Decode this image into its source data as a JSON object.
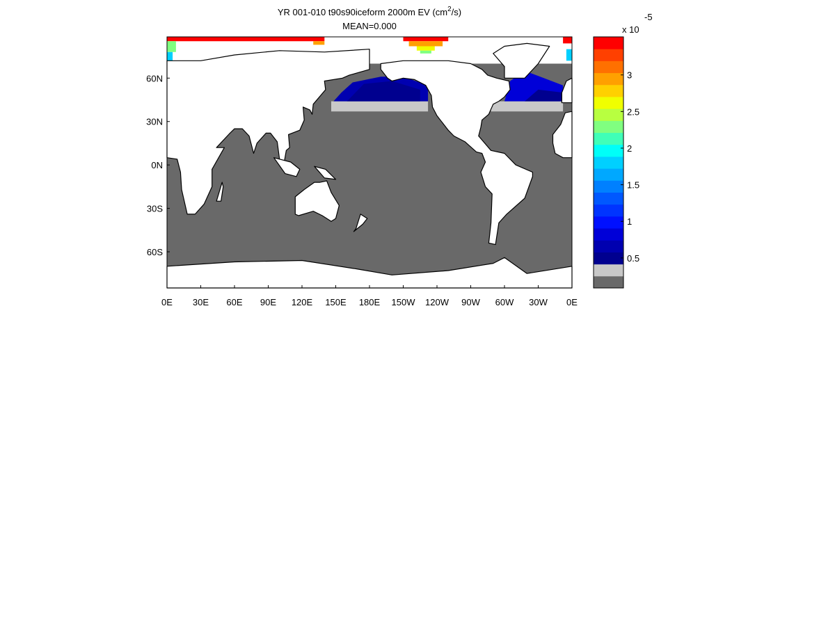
{
  "map": {
    "title": {
      "main": "YR 001-010 t90s90iceform 2000m EV (cm",
      "superscript": "2",
      "end": "/s)"
    },
    "subtitle": "MEAN=0.000",
    "lonlim": [
      0,
      360
    ],
    "latlim": [
      -85,
      88.5
    ],
    "lonticks": [
      {
        "value": 0,
        "label": "0E"
      },
      {
        "value": 30,
        "label": "30E"
      },
      {
        "value": 60,
        "label": "60E"
      },
      {
        "value": 90,
        "label": "90E"
      },
      {
        "value": 120,
        "label": "120E"
      },
      {
        "value": 150,
        "label": "150E"
      },
      {
        "value": 180,
        "label": "180E"
      },
      {
        "value": 210,
        "label": "150W"
      },
      {
        "value": 240,
        "label": "120W"
      },
      {
        "value": 270,
        "label": "90W"
      },
      {
        "value": 300,
        "label": "60W"
      },
      {
        "value": 330,
        "label": "30W"
      },
      {
        "value": 360,
        "label": "0E"
      }
    ],
    "latticks": [
      {
        "value": 60,
        "label": "60N"
      },
      {
        "value": 30,
        "label": "30N"
      },
      {
        "value": 0,
        "label": "0N"
      },
      {
        "value": -30,
        "label": "30S"
      },
      {
        "value": -60,
        "label": "60S"
      }
    ],
    "colorbar": {
      "lim": [
        0.09,
        3.52
      ],
      "ticks": [
        0.5,
        1,
        1.5,
        2,
        2.5,
        3
      ],
      "multiplier": "x 10",
      "exponent": "-5",
      "colors": [
        "#696969",
        "#c8c8c8",
        "#00008f",
        "#0000b0",
        "#0000d8",
        "#0010ff",
        "#0034ff",
        "#0058ff",
        "#0080ff",
        "#00a8ff",
        "#00d0ff",
        "#00fff8",
        "#40ffb8",
        "#80ff80",
        "#b8ff40",
        "#f0ff00",
        "#ffd000",
        "#ffa000",
        "#ff7000",
        "#ff4000",
        "#ff0000"
      ]
    }
  }
}
